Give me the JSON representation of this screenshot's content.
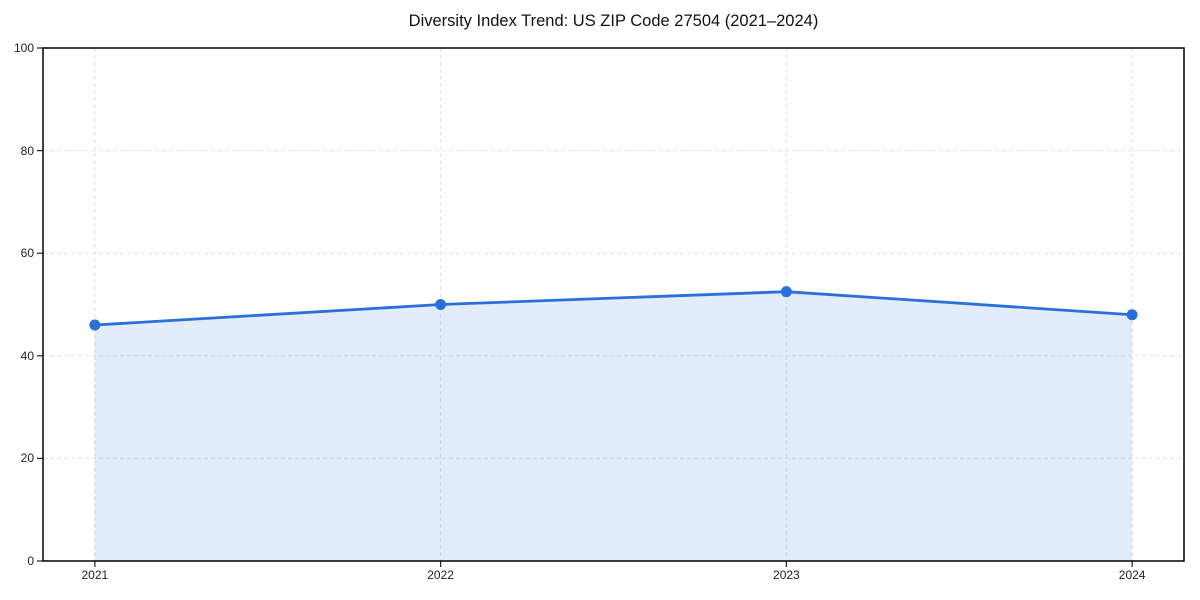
{
  "page": {
    "background_color": "#ffffff"
  },
  "chart_data": {
    "type": "area",
    "title": "Diversity Index Trend: US ZIP Code 27504 (2021–2024)",
    "x": [
      2021,
      2022,
      2023,
      2024
    ],
    "values": [
      46,
      50,
      52.5,
      48
    ],
    "xlabel": "",
    "ylabel": "",
    "xlim": [
      2020.85,
      2024.15
    ],
    "ylim": [
      0,
      100
    ],
    "xticks": [
      "2021",
      "2022",
      "2023",
      "2024"
    ],
    "yticks": [
      0,
      20,
      40,
      60,
      80,
      100
    ],
    "grid": "dashed-both-axes",
    "legend": "none",
    "line_color": "#2a6fdb",
    "fill_color": "#2a6fdb",
    "fill_opacity": 0.13,
    "marker": "circle",
    "spine_color": "#000000",
    "grid_color": "#e3e3e3",
    "tick_label_color": "#222222",
    "title_color": "#111111"
  }
}
